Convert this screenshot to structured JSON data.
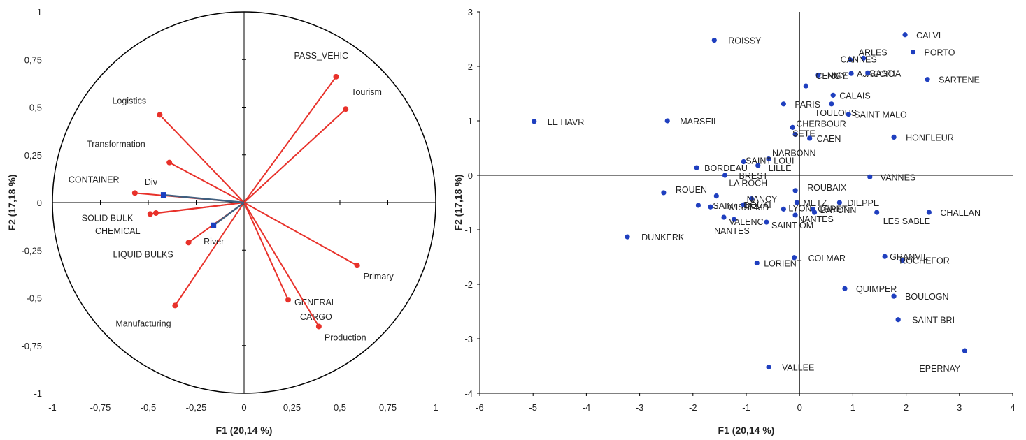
{
  "chart_data": [
    {
      "type": "scatter",
      "subtype": "correlation-circle",
      "title": "",
      "xlabel": "F1 (20,14 %)",
      "ylabel": "F2 (17,18 %)",
      "xlim": [
        -1,
        1
      ],
      "ylim": [
        -1,
        1
      ],
      "x_ticks": [
        "-1",
        "-0,75",
        "-0,5",
        "-0,25",
        "0",
        "0,25",
        "0,5",
        "0,75",
        "1"
      ],
      "y_ticks": [
        "-1",
        "-0,75",
        "-0,5",
        "-0,25",
        "0",
        "0,25",
        "0,5",
        "0,75",
        "1"
      ],
      "active_color": "#e8312a",
      "supplementary_color": "#3f5f7f",
      "marker_color": "#1a3fbf",
      "active_variables": [
        {
          "label": "PASS_VEHIC",
          "x": 0.48,
          "y": 0.66
        },
        {
          "label": "Tourism",
          "x": 0.53,
          "y": 0.49
        },
        {
          "label": "Logistics",
          "x": -0.44,
          "y": 0.46
        },
        {
          "label": "Transformation",
          "x": -0.39,
          "y": 0.21
        },
        {
          "label": "CONTAINER",
          "x": -0.57,
          "y": 0.05
        },
        {
          "label": "SOLID BULK",
          "x": -0.49,
          "y": -0.06
        },
        {
          "label": "CHEMICAL",
          "x": -0.46,
          "y": -0.055
        },
        {
          "label": "LIQUID BULKS",
          "x": -0.29,
          "y": -0.21
        },
        {
          "label": "Manufacturing",
          "x": -0.36,
          "y": -0.54
        },
        {
          "label": "Primary",
          "x": 0.59,
          "y": -0.33
        },
        {
          "label": "GENERAL CARGO",
          "x": 0.23,
          "y": -0.51
        },
        {
          "label": "Production",
          "x": 0.39,
          "y": -0.65
        }
      ],
      "supplementary_variables": [
        {
          "label": "Div",
          "x": -0.42,
          "y": 0.04
        },
        {
          "label": "River",
          "x": -0.16,
          "y": -0.12
        }
      ]
    },
    {
      "type": "scatter",
      "title": "",
      "xlabel": "F1 (20,14 %)",
      "ylabel": "F2 (17,18 %)",
      "xlim": [
        -6,
        4
      ],
      "ylim": [
        -4,
        3
      ],
      "x_ticks": [
        "-6",
        "-5",
        "-4",
        "-3",
        "-2",
        "-1",
        "0",
        "1",
        "2",
        "3",
        "4"
      ],
      "y_ticks": [
        "-4",
        "-3",
        "-2",
        "-1",
        "0",
        "1",
        "2",
        "3"
      ],
      "marker_color": "#1f3fbf",
      "points": [
        {
          "label": "ROISSY",
          "x": -1.6,
          "y": 2.48
        },
        {
          "label": "CALVI",
          "x": 1.98,
          "y": 2.58
        },
        {
          "label": "PORTO",
          "x": 2.13,
          "y": 2.26
        },
        {
          "label": "ARLES",
          "x": 1.2,
          "y": 2.15
        },
        {
          "label": "CANNES",
          "x": 0.95,
          "y": 2.12
        },
        {
          "label": "NICE",
          "x": 0.35,
          "y": 1.84
        },
        {
          "label": "AJACCIO",
          "x": 0.97,
          "y": 1.87
        },
        {
          "label": "BASTIA",
          "x": 1.28,
          "y": 1.88
        },
        {
          "label": "SARTENE",
          "x": 2.4,
          "y": 1.76
        },
        {
          "label": "CERGY",
          "x": 0.12,
          "y": 1.64
        },
        {
          "label": "CALAIS",
          "x": 0.63,
          "y": 1.47
        },
        {
          "label": "PARIS",
          "x": -0.3,
          "y": 1.31
        },
        {
          "label": "TOULOUS",
          "x": 0.6,
          "y": 1.31
        },
        {
          "label": "SAINT MALO",
          "x": 0.92,
          "y": 1.12
        },
        {
          "label": "LE HAVR",
          "x": -4.98,
          "y": 0.99
        },
        {
          "label": "MARSEIL",
          "x": -2.48,
          "y": 1.0
        },
        {
          "label": "CHERBOUR",
          "x": -0.13,
          "y": 0.88
        },
        {
          "label": "SETE",
          "x": -0.08,
          "y": 0.75
        },
        {
          "label": "CAEN",
          "x": 0.19,
          "y": 0.68
        },
        {
          "label": "HONFLEUR",
          "x": 1.77,
          "y": 0.7
        },
        {
          "label": "NARBONN",
          "x": -0.58,
          "y": 0.3
        },
        {
          "label": "SAINT LOUI",
          "x": -1.05,
          "y": 0.25
        },
        {
          "label": "LILLE",
          "x": -0.78,
          "y": 0.18
        },
        {
          "label": "BORDEAU",
          "x": -1.93,
          "y": 0.14
        },
        {
          "label": "BREST",
          "x": -1.4,
          "y": 0.0
        },
        {
          "label": "VANNES",
          "x": 1.32,
          "y": -0.03
        },
        {
          "label": "ROUEN",
          "x": -2.55,
          "y": -0.32
        },
        {
          "label": "ROUBAIX",
          "x": -0.08,
          "y": -0.28
        },
        {
          "label": "LA ROCH",
          "x": -1.56,
          "y": -0.38
        },
        {
          "label": "NANCY",
          "x": -0.9,
          "y": -0.43
        },
        {
          "label": "SAINT NAZ",
          "x": -1.9,
          "y": -0.55
        },
        {
          "label": "WISSEMB",
          "x": -1.67,
          "y": -0.58
        },
        {
          "label": "DOUAI",
          "x": -1.05,
          "y": -0.54
        },
        {
          "label": "METZ",
          "x": -0.05,
          "y": -0.5
        },
        {
          "label": "DIEPPE",
          "x": 0.75,
          "y": -0.5
        },
        {
          "label": "LYON",
          "x": -0.3,
          "y": -0.62
        },
        {
          "label": "CERET",
          "x": 0.25,
          "y": -0.62
        },
        {
          "label": "BAYONN",
          "x": 0.28,
          "y": -0.68
        },
        {
          "label": "NANTES",
          "x": -0.08,
          "y": -0.73
        },
        {
          "label": "LES SABLE",
          "x": 1.45,
          "y": -0.68
        },
        {
          "label": "CHALLAN",
          "x": 2.43,
          "y": -0.68
        },
        {
          "label": "NANTES",
          "x": -1.42,
          "y": -0.77
        },
        {
          "label": "VALENC",
          "x": -1.23,
          "y": -0.81
        },
        {
          "label": "SAINT OM",
          "x": -0.62,
          "y": -0.86
        },
        {
          "label": "DUNKERK",
          "x": -3.23,
          "y": -1.13
        },
        {
          "label": "COLMAR",
          "x": -0.1,
          "y": -1.51
        },
        {
          "label": "LORIENT",
          "x": -0.8,
          "y": -1.61
        },
        {
          "label": "GRANVIL",
          "x": 1.6,
          "y": -1.49
        },
        {
          "label": "ROCHEFOR",
          "x": 1.93,
          "y": -1.56
        },
        {
          "label": "QUIMPER",
          "x": 0.85,
          "y": -2.08
        },
        {
          "label": "BOULOGN",
          "x": 1.77,
          "y": -2.22
        },
        {
          "label": "SAINT BRI",
          "x": 1.85,
          "y": -2.65
        },
        {
          "label": "EPERNAY",
          "x": 3.1,
          "y": -3.22
        },
        {
          "label": "VALLEE",
          "x": -0.58,
          "y": -3.52
        }
      ]
    }
  ]
}
